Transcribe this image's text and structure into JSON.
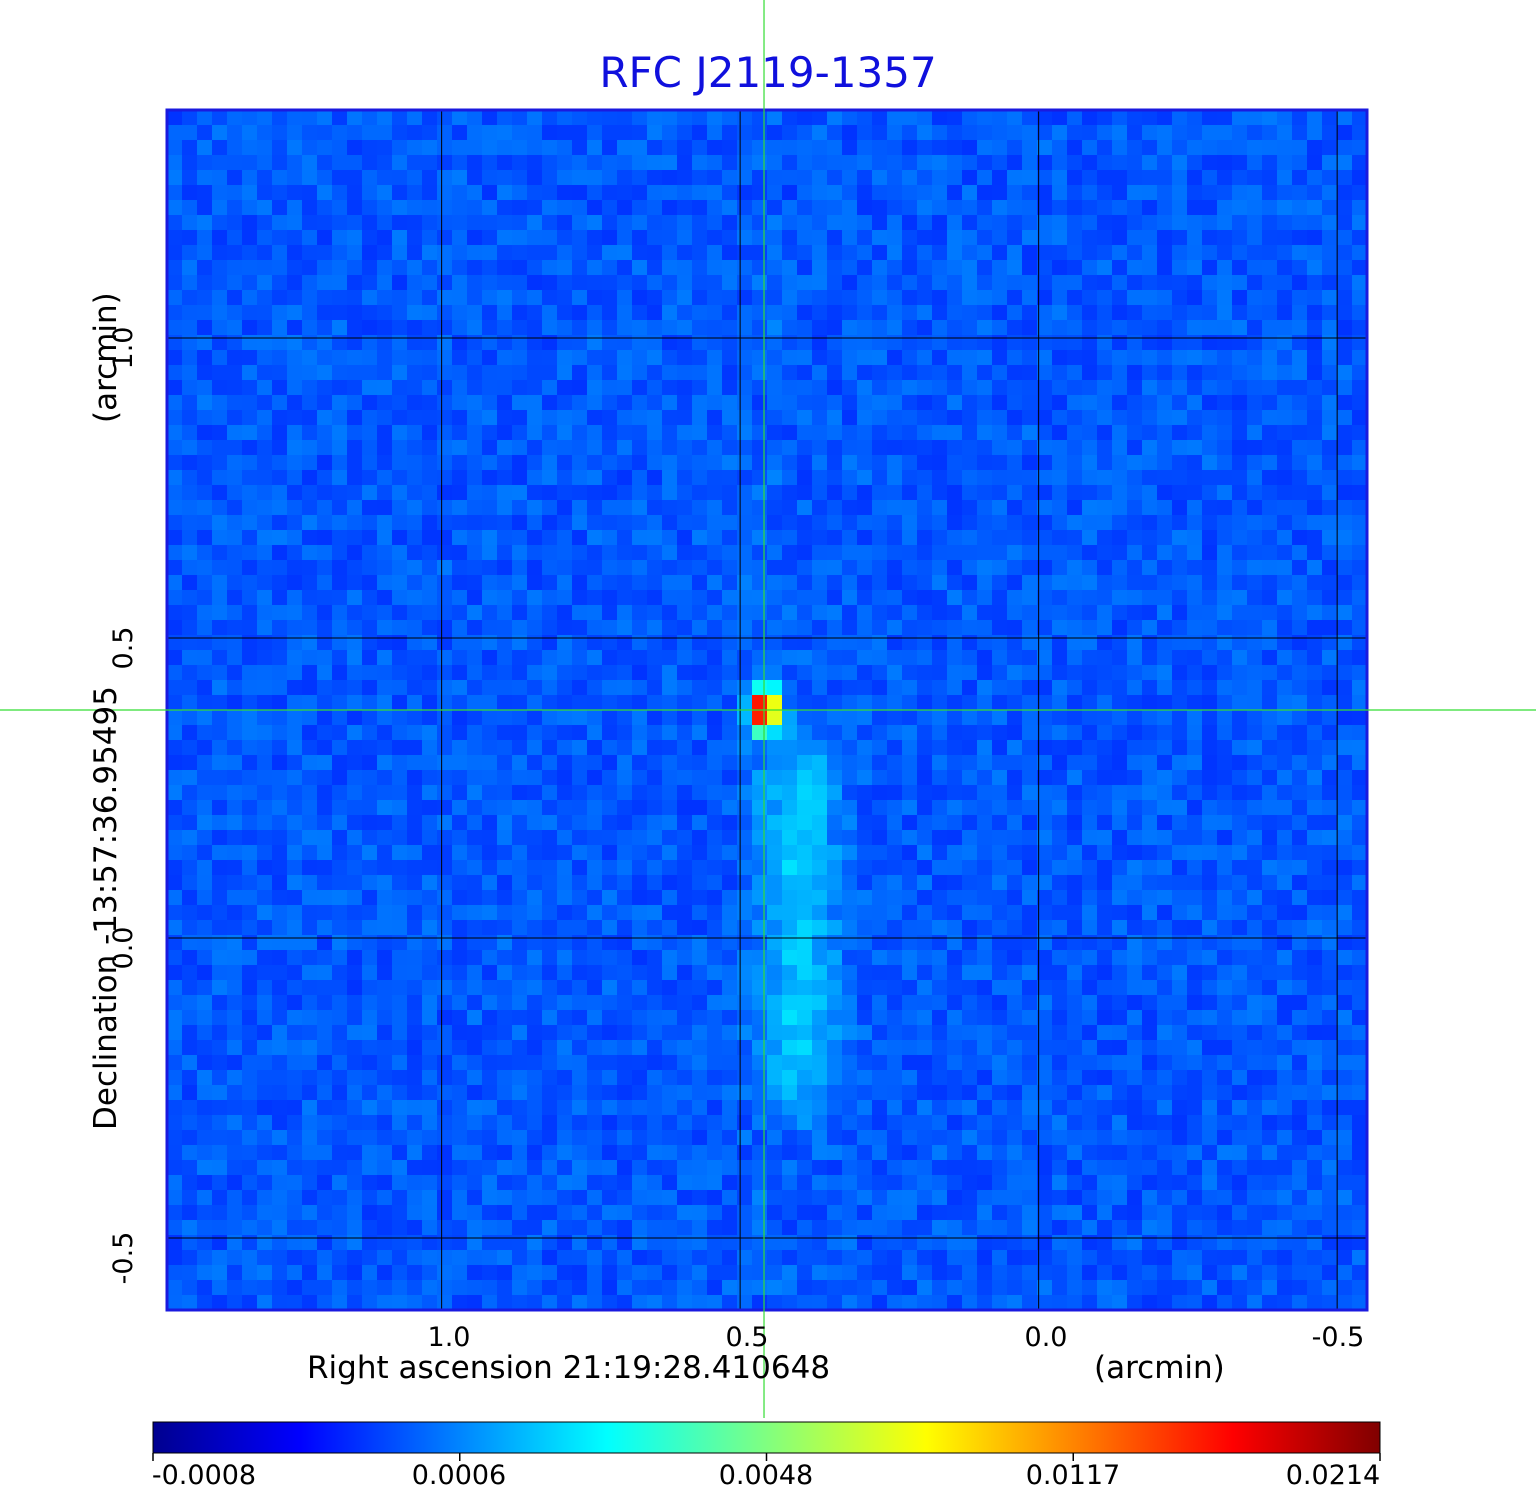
{
  "chart_data": {
    "type": "heatmap",
    "title": "RFC J2119-1357",
    "xlabel": "Right ascension  21:19:28.410648",
    "xunit": "(arcmin)",
    "ylabel": "Declination  -13:57:36.95495",
    "yunit": "(arcmin)",
    "x_ticks": [
      "1.0",
      "0.5",
      "0.0",
      "-0.5"
    ],
    "x_tick_values": [
      1.0,
      0.5,
      0.0,
      -0.5
    ],
    "y_ticks": [
      "1.0",
      "0.5",
      "0.0",
      "-0.5"
    ],
    "y_tick_values": [
      1.0,
      0.5,
      0.0,
      -0.5
    ],
    "xlim": [
      1.46,
      -0.55
    ],
    "ylim": [
      -0.62,
      1.38
    ],
    "grid": true,
    "source_peak": {
      "x": 0.46,
      "y": 0.38,
      "value": 0.0214
    },
    "extended_emission": {
      "x": 0.4,
      "y_range": [
        -0.2,
        0.25
      ]
    },
    "crosshair": {
      "x": 0.46,
      "y": 0.38,
      "color": "#33dd33"
    },
    "colorbar": {
      "tick_labels": [
        "-0.0008",
        "0.0006",
        "0.0048",
        "0.0117",
        "0.0214"
      ],
      "tick_values": [
        -0.0008,
        0.0006,
        0.0048,
        0.0117,
        0.0214
      ],
      "colormap": "jet",
      "placement": "bottom"
    },
    "colors": {
      "title": "#1010dd",
      "frame": "#1a1adf",
      "grid": "#000000",
      "crosshair": "#33dd33"
    }
  }
}
